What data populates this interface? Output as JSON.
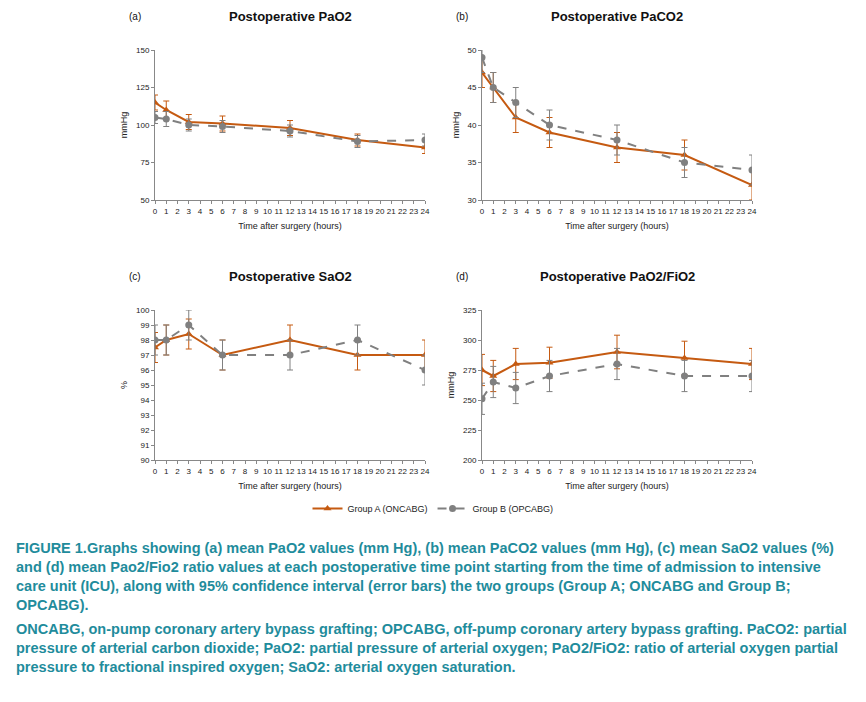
{
  "chart_data": [
    {
      "type": "line",
      "label": "(a)",
      "title": "Postoperative PaO2",
      "x_label": "Time after surgery (hours)",
      "y_label": "mmHg",
      "x": [
        0,
        1,
        3,
        6,
        12,
        18,
        24
      ],
      "xlim": [
        0,
        24
      ],
      "xticks": [
        0,
        1,
        2,
        3,
        4,
        5,
        6,
        7,
        8,
        9,
        10,
        11,
        12,
        13,
        14,
        15,
        16,
        17,
        18,
        19,
        20,
        21,
        22,
        23,
        24
      ],
      "ylim": [
        50,
        150
      ],
      "yticks": [
        50,
        75,
        100,
        125,
        150
      ],
      "grid": false,
      "legend": "bottom",
      "series": [
        {
          "name": "Group A (ONCABG)",
          "color": "#c55a11",
          "marker": "triangle-up",
          "line_style": "solid",
          "values": [
            115,
            110,
            102,
            101,
            98,
            90,
            85
          ],
          "errors": [
            5,
            6,
            5,
            5,
            5,
            4,
            4
          ]
        },
        {
          "name": "Group B (OPCABG)",
          "color": "#808080",
          "marker": "circle",
          "line_style": "dash",
          "values": [
            105,
            104,
            100,
            99,
            96,
            89,
            90
          ],
          "errors": [
            4,
            5,
            4,
            4,
            4,
            4,
            4
          ]
        }
      ]
    },
    {
      "type": "line",
      "label": "(b)",
      "title": "Postoperative PaCO2",
      "x_label": "Time after surgery (hours)",
      "y_label": "mmHg",
      "x": [
        0,
        1,
        3,
        6,
        12,
        18,
        24
      ],
      "xlim": [
        0,
        24
      ],
      "xticks": [
        0,
        1,
        2,
        3,
        4,
        5,
        6,
        7,
        8,
        9,
        10,
        11,
        12,
        13,
        14,
        15,
        16,
        17,
        18,
        19,
        20,
        21,
        22,
        23,
        24
      ],
      "ylim": [
        30,
        50
      ],
      "yticks": [
        30,
        35,
        40,
        45,
        50
      ],
      "grid": false,
      "legend": "bottom",
      "series": [
        {
          "name": "Group A (ONCABG)",
          "color": "#c55a11",
          "marker": "triangle-up",
          "line_style": "solid",
          "values": [
            47,
            45,
            41,
            39,
            37,
            36,
            32
          ],
          "errors": [
            2,
            2,
            2,
            2,
            2,
            2,
            2
          ]
        },
        {
          "name": "Group B (OPCABG)",
          "color": "#808080",
          "marker": "circle",
          "line_style": "dash",
          "values": [
            49,
            45,
            43,
            40,
            38,
            35,
            34
          ],
          "errors": [
            2,
            2,
            2,
            2,
            2,
            2,
            2
          ]
        }
      ]
    },
    {
      "type": "line",
      "label": "(c)",
      "title": "Postoperative SaO2",
      "x_label": "Time after surgery (hours)",
      "y_label": "%",
      "x": [
        0,
        1,
        3,
        6,
        12,
        18,
        24
      ],
      "xlim": [
        0,
        24
      ],
      "xticks": [
        0,
        1,
        2,
        3,
        4,
        5,
        6,
        7,
        8,
        9,
        10,
        11,
        12,
        13,
        14,
        15,
        16,
        17,
        18,
        19,
        20,
        21,
        22,
        23,
        24
      ],
      "ylim": [
        90,
        100
      ],
      "yticks": [
        90,
        91,
        92,
        93,
        94,
        95,
        96,
        97,
        98,
        99,
        100
      ],
      "grid": false,
      "legend": "bottom",
      "series": [
        {
          "name": "Group A (ONCABG)",
          "color": "#c55a11",
          "marker": "triangle-up",
          "line_style": "solid",
          "values": [
            97.5,
            98,
            98.4,
            97,
            98,
            97,
            97
          ],
          "errors": [
            1,
            1,
            1,
            1,
            1,
            1,
            1
          ]
        },
        {
          "name": "Group B (OPCABG)",
          "color": "#808080",
          "marker": "circle",
          "line_style": "dash",
          "values": [
            98,
            98,
            99,
            97,
            97,
            98,
            96
          ],
          "errors": [
            1,
            1,
            1,
            1,
            1,
            1,
            1
          ]
        }
      ]
    },
    {
      "type": "line",
      "label": "(d)",
      "title": "Postoperative PaO2/FiO2",
      "x_label": "Time after surgery (hours)",
      "y_label": "mmHg",
      "x": [
        0,
        1,
        3,
        6,
        12,
        18,
        24
      ],
      "xlim": [
        0,
        24
      ],
      "xticks": [
        0,
        1,
        2,
        3,
        4,
        5,
        6,
        7,
        8,
        9,
        10,
        11,
        12,
        13,
        14,
        15,
        16,
        17,
        18,
        19,
        20,
        21,
        22,
        23,
        24
      ],
      "ylim": [
        200,
        325
      ],
      "yticks": [
        200,
        225,
        250,
        275,
        300,
        325
      ],
      "grid": false,
      "legend": "bottom",
      "series": [
        {
          "name": "Group A (ONCABG)",
          "color": "#c55a11",
          "marker": "triangle-up",
          "line_style": "solid",
          "values": [
            275,
            270,
            280,
            281,
            290,
            285,
            280
          ],
          "errors": [
            13,
            13,
            13,
            13,
            14,
            14,
            13
          ]
        },
        {
          "name": "Group B (OPCABG)",
          "color": "#808080",
          "marker": "circle",
          "line_style": "dash",
          "values": [
            251,
            265,
            260,
            270,
            280,
            270,
            270
          ],
          "errors": [
            13,
            13,
            13,
            13,
            13,
            13,
            13
          ]
        }
      ]
    }
  ],
  "caption": [
    "FIGURE 1.Graphs showing (a) mean PaO2 values (mm Hg), (b) mean PaCO2 values (mm Hg), (c) mean SaO2 values (%) and (d) mean Pao2/Fio2 ratio values at each postoperative time point starting from the time of admission to intensive care unit (ICU), along with 95% confidence interval (error bars) the two groups (Group A; ONCABG and Group B; OPCABG).",
    "ONCABG, on-pump coronary artery bypass grafting; OPCABG, off-pump coronary artery bypass grafting. PaCO2: partial pressure of arterial carbon dioxide; PaO2: partial pressure of arterial oxygen; PaO2/FiO2: ratio of arterial oxygen partial pressure to fractional inspired oxygen; SaO2: arterial oxygen saturation."
  ]
}
